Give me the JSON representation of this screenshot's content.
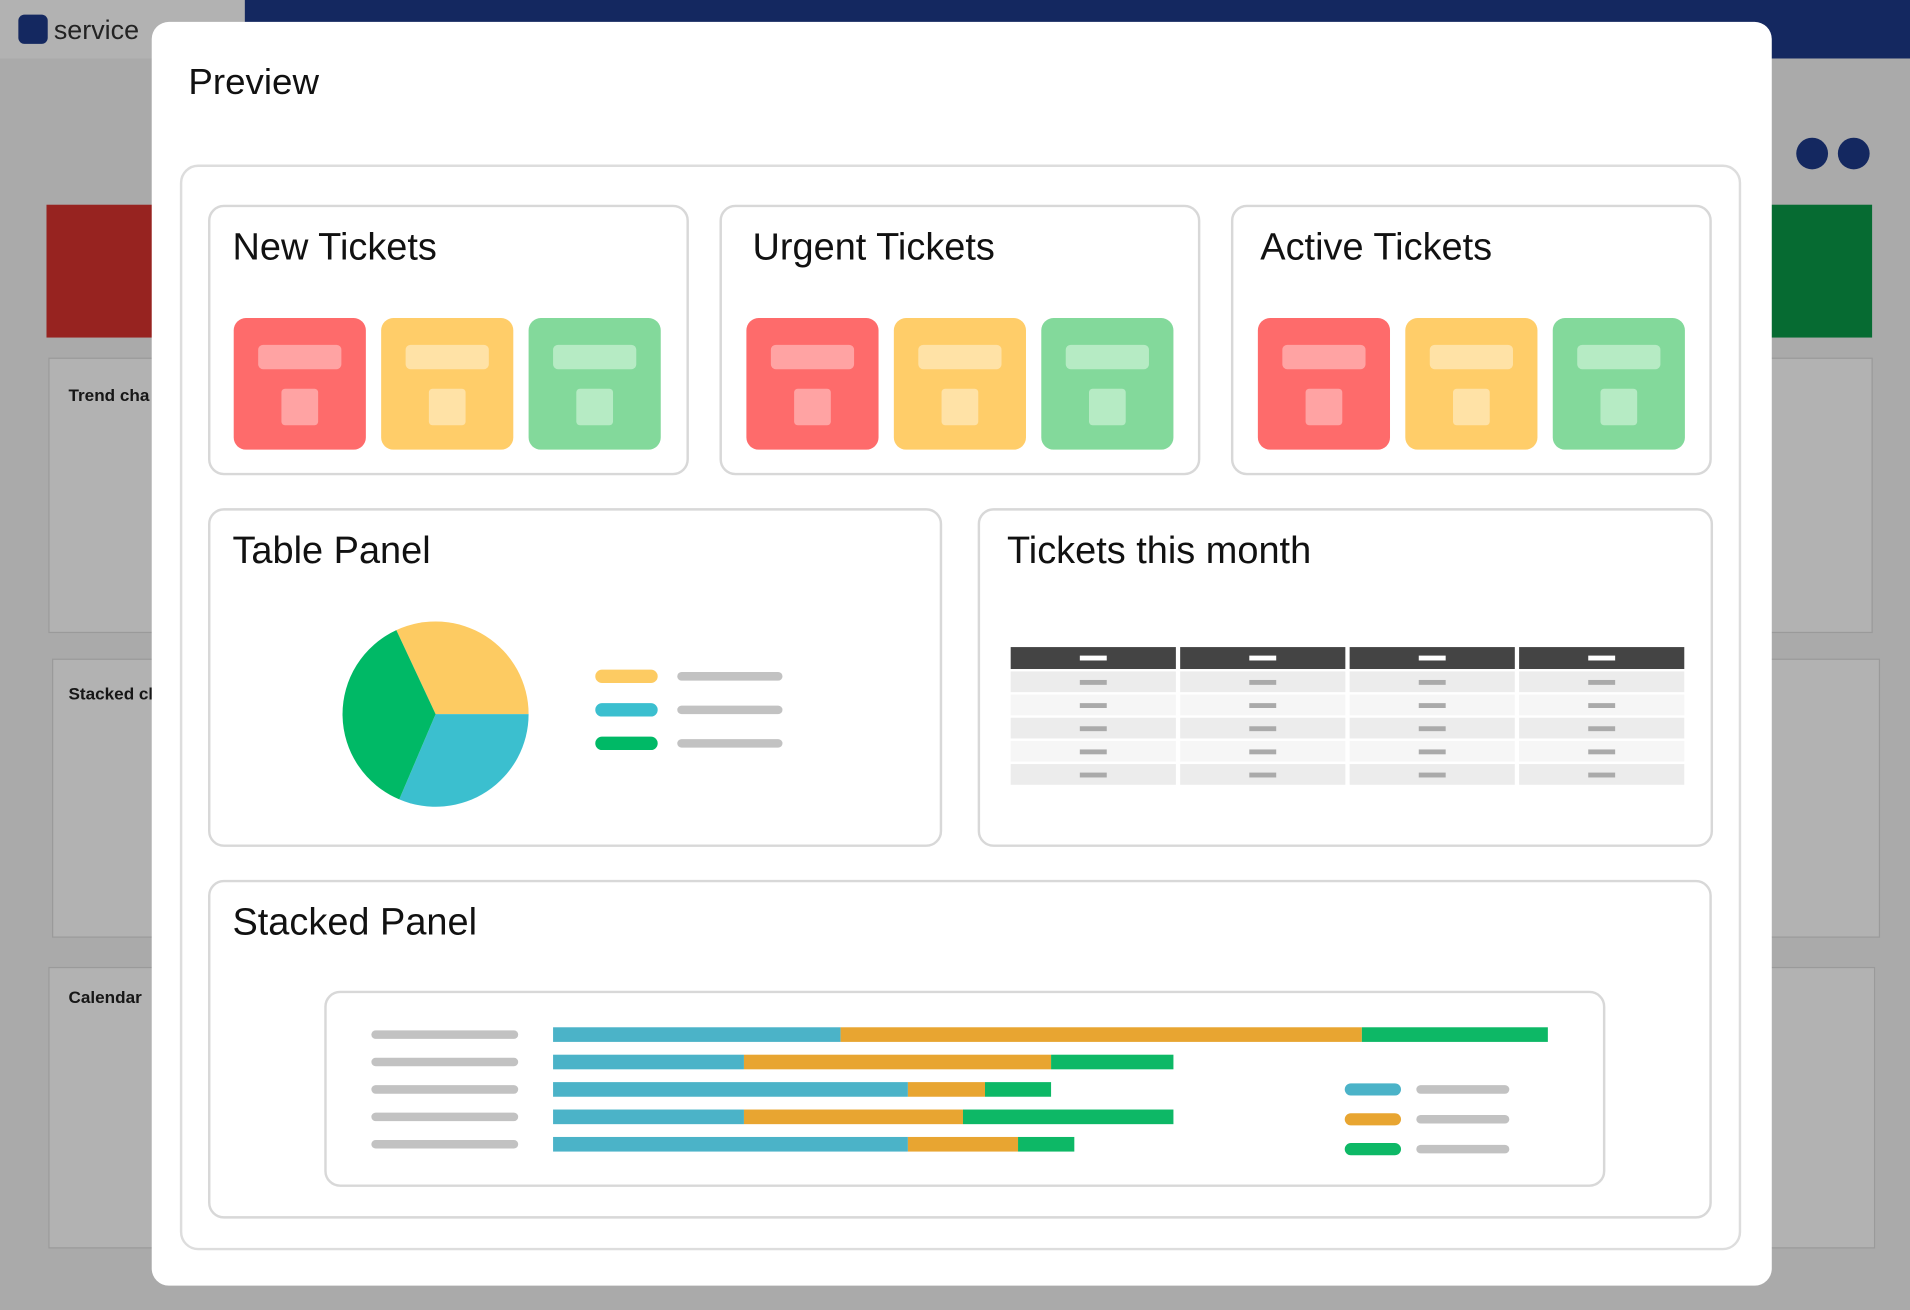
{
  "app": {
    "logo": "service"
  },
  "background": {
    "panels": [
      "Trend cha",
      "Stacked cl",
      "Calendar"
    ]
  },
  "modal": {
    "title": "Preview",
    "cards": [
      "New Tickets",
      "Urgent Tickets",
      "Active Tickets",
      "Table Panel",
      "Tickets this month",
      "Stacked Panel"
    ]
  }
}
